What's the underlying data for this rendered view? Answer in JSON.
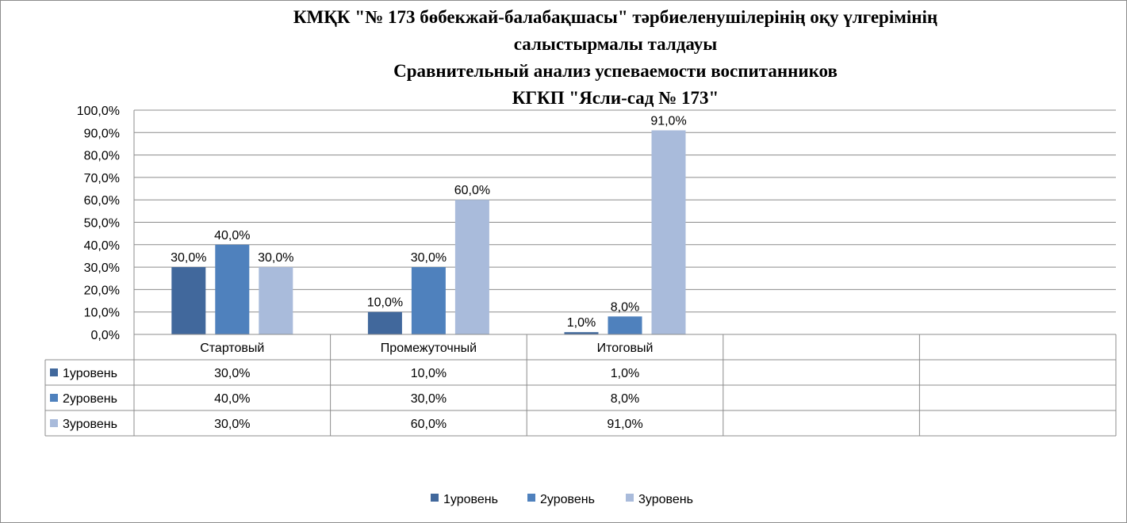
{
  "chart_data": {
    "type": "bar",
    "title_lines": [
      "КМҚК  \"№ 173 бөбекжай-балабақшасы\"  тәрбиеленушілерінің  оқу үлгерімінің",
      "салыстырмалы талдауы",
      "Сравнительный  анализ успеваемости  воспитанников",
      "КГКП \"Ясли-сад  № 173\""
    ],
    "categories": [
      "Стартовый",
      "Промежуточный",
      "Итоговый",
      "",
      ""
    ],
    "series": [
      {
        "name": "1уровень",
        "values": [
          30.0,
          10.0,
          1.0,
          null,
          null
        ],
        "labels": [
          "30,0%",
          "10,0%",
          "1,0%",
          "",
          ""
        ],
        "color": "#41689c"
      },
      {
        "name": "2уровень",
        "values": [
          40.0,
          30.0,
          8.0,
          null,
          null
        ],
        "labels": [
          "40,0%",
          "30,0%",
          "8,0%",
          "",
          ""
        ],
        "color": "#4f81bd"
      },
      {
        "name": "3уровень",
        "values": [
          30.0,
          60.0,
          91.0,
          null,
          null
        ],
        "labels": [
          "30,0%",
          "60,0%",
          "91,0%",
          "",
          ""
        ],
        "color": "#a9bbdb"
      }
    ],
    "yticks": [
      "0,0%",
      "10,0%",
      "20,0%",
      "30,0%",
      "40,0%",
      "50,0%",
      "60,0%",
      "70,0%",
      "80,0%",
      "90,0%",
      "100,0%"
    ],
    "ylim": [
      0,
      100
    ],
    "grid": true,
    "data_table": true,
    "legend": "bottom"
  }
}
